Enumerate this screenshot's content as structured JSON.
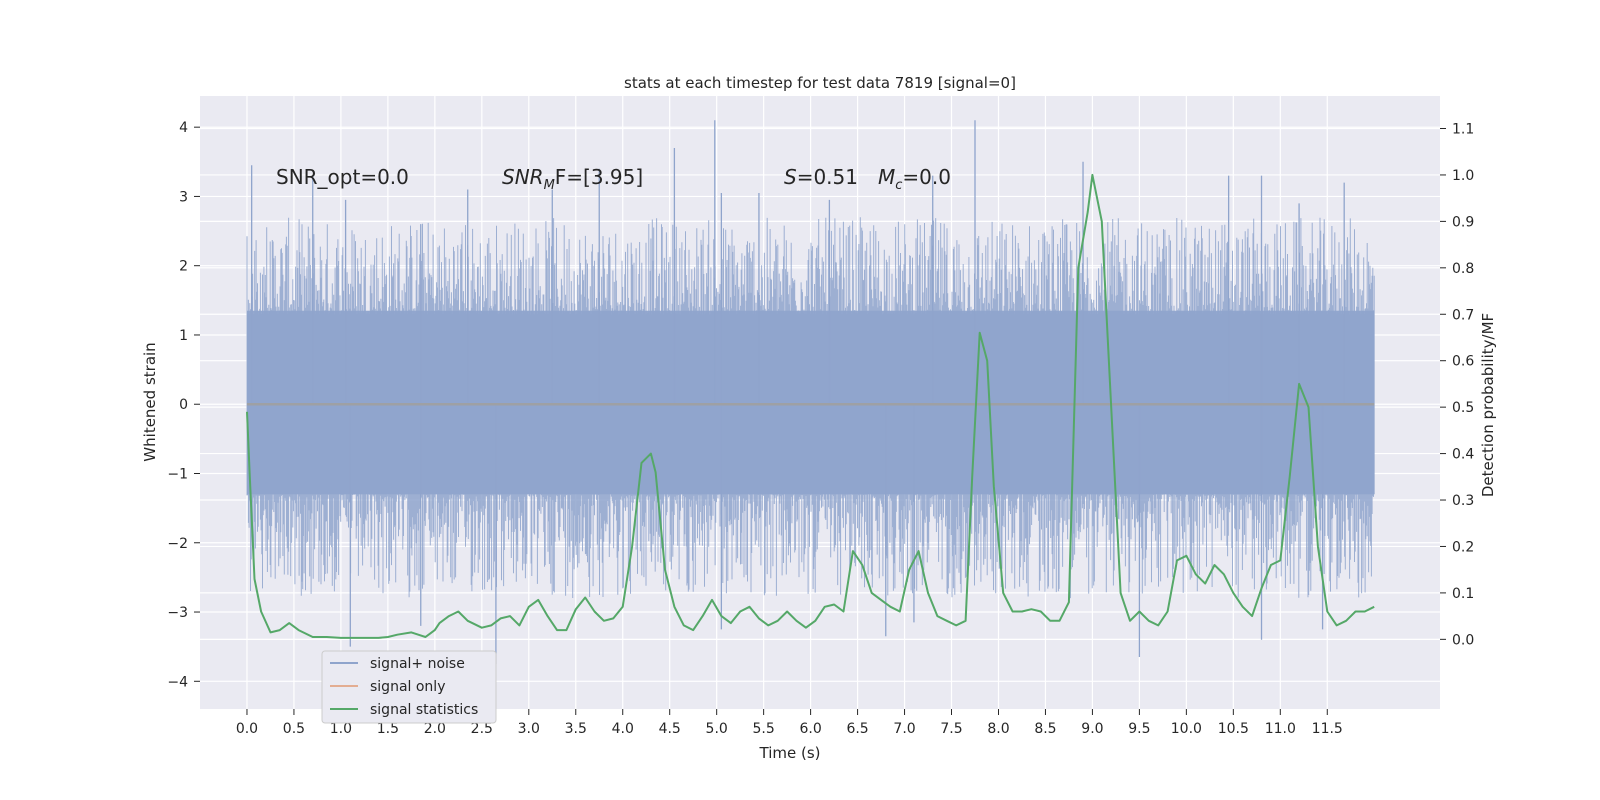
{
  "chart_data": {
    "type": "line",
    "title": "stats at each timestep for test data 7819 [signal=0]",
    "xlabel": "Time (s)",
    "ylabel_left": "Whitened strain",
    "ylabel_right": "Detection probability/MF",
    "xlim": [
      -0.5,
      12.7
    ],
    "ylim_left": [
      -4.4,
      4.45
    ],
    "ylim_right": [
      -0.15,
      1.17
    ],
    "x_ticks": [
      0.0,
      0.5,
      1.0,
      1.5,
      2.0,
      2.5,
      3.0,
      3.5,
      4.0,
      4.5,
      5.0,
      5.5,
      6.0,
      6.5,
      7.0,
      7.5,
      8.0,
      8.5,
      9.0,
      9.5,
      10.0,
      10.5,
      11.0,
      11.5
    ],
    "x_tick_labels": [
      "0.0",
      "0.5",
      "1.0",
      "1.5",
      "2.0",
      "2.5",
      "3.0",
      "3.5",
      "4.0",
      "4.5",
      "5.0",
      "5.5",
      "6.0",
      "6.5",
      "7.0",
      "7.5",
      "8.0",
      "8.5",
      "9.0",
      "9.5",
      "10.0",
      "10.5",
      "11.0",
      "11.5"
    ],
    "y_left_ticks": [
      4,
      3,
      2,
      1,
      0,
      -1,
      -2,
      -3,
      -4
    ],
    "y_left_tick_labels": [
      "4",
      "3",
      "2",
      "1",
      "0",
      "−1",
      "−2",
      "−3",
      "−4"
    ],
    "y_right_ticks": [
      1.1,
      1.0,
      0.9,
      0.8,
      0.7,
      0.6,
      0.5,
      0.4,
      0.3,
      0.2,
      0.1,
      0.0
    ],
    "y_right_tick_labels": [
      "1.1",
      "1.0",
      "0.9",
      "0.8",
      "0.7",
      "0.6",
      "0.5",
      "0.4",
      "0.3",
      "0.2",
      "0.1",
      "0.0"
    ],
    "grid": true,
    "legend_position": "lower-left",
    "colors": {
      "background": "#eaeaf2",
      "grid": "#ffffff",
      "noise": "#8fa4cc",
      "signal_only": "#dd8452",
      "statistics": "#55a868"
    },
    "annotations": {
      "snr_opt": "SNR_opt=0.0",
      "snr_mf_label": "SNR",
      "snr_mf_sub": "M",
      "snr_mf_rest": "F=[3.95]",
      "s_label": "S",
      "s_rest": "=0.51",
      "mc_label": "M",
      "mc_sub": "c",
      "mc_rest": "=0.0"
    },
    "noise_envelope": {
      "x_range": [
        0.0,
        12.0
      ],
      "typical_abs_max": 2.0,
      "peak_max": 4.1,
      "peak_min": -3.75,
      "spikes": [
        [
          0.05,
          3.45
        ],
        [
          0.7,
          3.3
        ],
        [
          1.05,
          2.95
        ],
        [
          1.85,
          2.6
        ],
        [
          2.35,
          3.1
        ],
        [
          3.25,
          3.1
        ],
        [
          3.75,
          3.4
        ],
        [
          4.55,
          3.7
        ],
        [
          4.98,
          4.1
        ],
        [
          5.05,
          3.05
        ],
        [
          5.45,
          3.05
        ],
        [
          6.2,
          2.95
        ],
        [
          7.3,
          3.3
        ],
        [
          7.75,
          4.1
        ],
        [
          8.9,
          3.5
        ],
        [
          10.45,
          3.3
        ],
        [
          10.8,
          3.3
        ],
        [
          11.2,
          2.9
        ],
        [
          11.68,
          3.2
        ],
        [
          1.1,
          -3.5
        ],
        [
          1.85,
          -3.2
        ],
        [
          2.65,
          -3.75
        ],
        [
          5.05,
          -3.25
        ],
        [
          6.8,
          -3.35
        ],
        [
          7.1,
          -3.15
        ],
        [
          9.5,
          -3.65
        ],
        [
          10.8,
          -3.4
        ],
        [
          11.45,
          -3.25
        ]
      ]
    },
    "series": [
      {
        "name": "signal+ noise",
        "axis": "left",
        "values": []
      },
      {
        "name": "signal only",
        "axis": "left",
        "x": [
          0.0,
          12.0
        ],
        "values": [
          0.0,
          0.0
        ]
      },
      {
        "name": "signal statistics",
        "axis": "right",
        "x": [
          0.0,
          0.03,
          0.08,
          0.15,
          0.25,
          0.35,
          0.45,
          0.55,
          0.7,
          0.85,
          1.0,
          1.1,
          1.25,
          1.4,
          1.5,
          1.6,
          1.75,
          1.9,
          2.0,
          2.05,
          2.15,
          2.25,
          2.35,
          2.5,
          2.6,
          2.7,
          2.8,
          2.9,
          3.0,
          3.1,
          3.2,
          3.3,
          3.4,
          3.5,
          3.6,
          3.7,
          3.8,
          3.9,
          4.0,
          4.1,
          4.2,
          4.3,
          4.35,
          4.45,
          4.55,
          4.65,
          4.75,
          4.85,
          4.95,
          5.05,
          5.15,
          5.25,
          5.35,
          5.45,
          5.55,
          5.65,
          5.75,
          5.85,
          5.95,
          6.05,
          6.15,
          6.25,
          6.35,
          6.45,
          6.55,
          6.65,
          6.75,
          6.85,
          6.95,
          7.05,
          7.15,
          7.25,
          7.35,
          7.45,
          7.55,
          7.65,
          7.72,
          7.8,
          7.88,
          7.95,
          8.05,
          8.15,
          8.25,
          8.35,
          8.45,
          8.55,
          8.65,
          8.75,
          8.85,
          8.95,
          9.0,
          9.1,
          9.2,
          9.3,
          9.4,
          9.5,
          9.6,
          9.7,
          9.8,
          9.9,
          10.0,
          10.1,
          10.2,
          10.3,
          10.4,
          10.5,
          10.6,
          10.7,
          10.8,
          10.9,
          11.0,
          11.1,
          11.2,
          11.3,
          11.4,
          11.5,
          11.6,
          11.7,
          11.8,
          11.9,
          12.0
        ],
        "values": [
          0.49,
          0.35,
          0.13,
          0.06,
          0.015,
          0.02,
          0.035,
          0.02,
          0.005,
          0.005,
          0.003,
          0.003,
          0.003,
          0.003,
          0.005,
          0.01,
          0.015,
          0.005,
          0.02,
          0.035,
          0.05,
          0.06,
          0.04,
          0.025,
          0.03,
          0.045,
          0.05,
          0.03,
          0.07,
          0.085,
          0.05,
          0.02,
          0.02,
          0.065,
          0.09,
          0.06,
          0.04,
          0.045,
          0.07,
          0.2,
          0.38,
          0.4,
          0.36,
          0.15,
          0.07,
          0.03,
          0.02,
          0.05,
          0.085,
          0.05,
          0.035,
          0.06,
          0.07,
          0.045,
          0.03,
          0.04,
          0.06,
          0.04,
          0.025,
          0.04,
          0.07,
          0.075,
          0.06,
          0.19,
          0.16,
          0.1,
          0.085,
          0.07,
          0.06,
          0.15,
          0.19,
          0.1,
          0.05,
          0.04,
          0.03,
          0.04,
          0.35,
          0.66,
          0.6,
          0.33,
          0.1,
          0.06,
          0.06,
          0.065,
          0.06,
          0.04,
          0.04,
          0.08,
          0.8,
          0.92,
          1.0,
          0.9,
          0.5,
          0.1,
          0.04,
          0.06,
          0.04,
          0.03,
          0.06,
          0.17,
          0.18,
          0.14,
          0.12,
          0.16,
          0.14,
          0.1,
          0.07,
          0.05,
          0.11,
          0.16,
          0.17,
          0.35,
          0.55,
          0.5,
          0.2,
          0.06,
          0.03,
          0.04,
          0.06,
          0.06,
          0.07
        ]
      }
    ]
  }
}
